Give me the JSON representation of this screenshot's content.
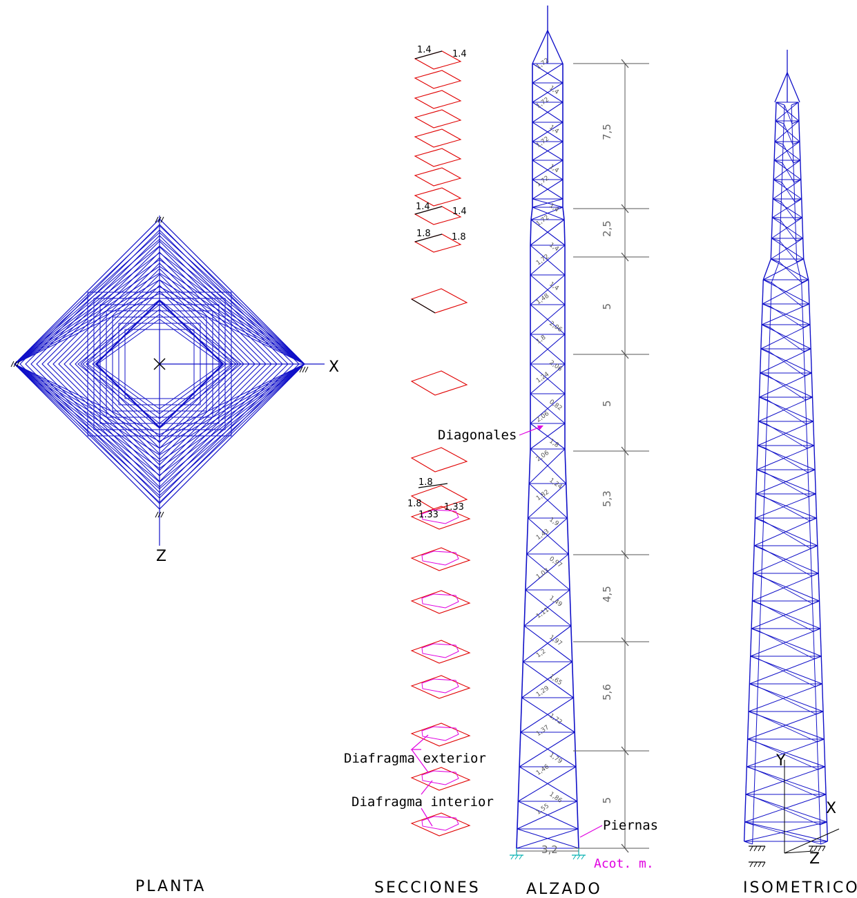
{
  "views": {
    "planta": "PLANTA",
    "secciones": "SECCIONES",
    "alzado": "ALZADO",
    "isometrico": "ISOMETRICO"
  },
  "axes": {
    "x": "X",
    "z": "Z",
    "y": "Y"
  },
  "callouts": {
    "diagonales": "Diagonales",
    "diafragma_exterior": "Diafragma exterior",
    "diafragma_interior": "Diafragma interior",
    "piernas": "Piernas",
    "units": "Acot. m."
  },
  "dimensions": [
    "7,5",
    "2,5",
    "5",
    "5",
    "5,3",
    "4,5",
    "5,6",
    "5"
  ],
  "base_width": "3,2",
  "section_labels": {
    "s1a": "1.4",
    "s1b": "1.4",
    "s2a": "1.4",
    "s2b": "1.4",
    "s3a": "1.8",
    "s3b": "1.8",
    "s4a": "1.8",
    "s4b": "1.8",
    "s4c": "1.33",
    "s4d": "1.33"
  },
  "member_labels": [
    "1,72",
    "1,4",
    "1,72",
    "1,4",
    "1,72",
    "1,4",
    "1,72",
    "1,4",
    "1,72",
    "1,4",
    "1,72",
    "1,4",
    "1,48",
    "2,06",
    "1,8",
    "2,06",
    "1,24",
    "0,82",
    "2,06",
    "1,8",
    "2,06",
    "1,24",
    "1,82",
    "1,9",
    "1,43",
    "0,97",
    "1,03",
    "1,49",
    "1,11",
    "1,97",
    "1,2",
    "1,65",
    "1,29",
    "1,72",
    "1,37",
    "1,79",
    "1,46",
    "1,86",
    "1,55"
  ],
  "colors": {
    "structure": "#1010c8",
    "section": "#e00000",
    "diaphragm": "#e000e0",
    "dimension": "#555555"
  }
}
